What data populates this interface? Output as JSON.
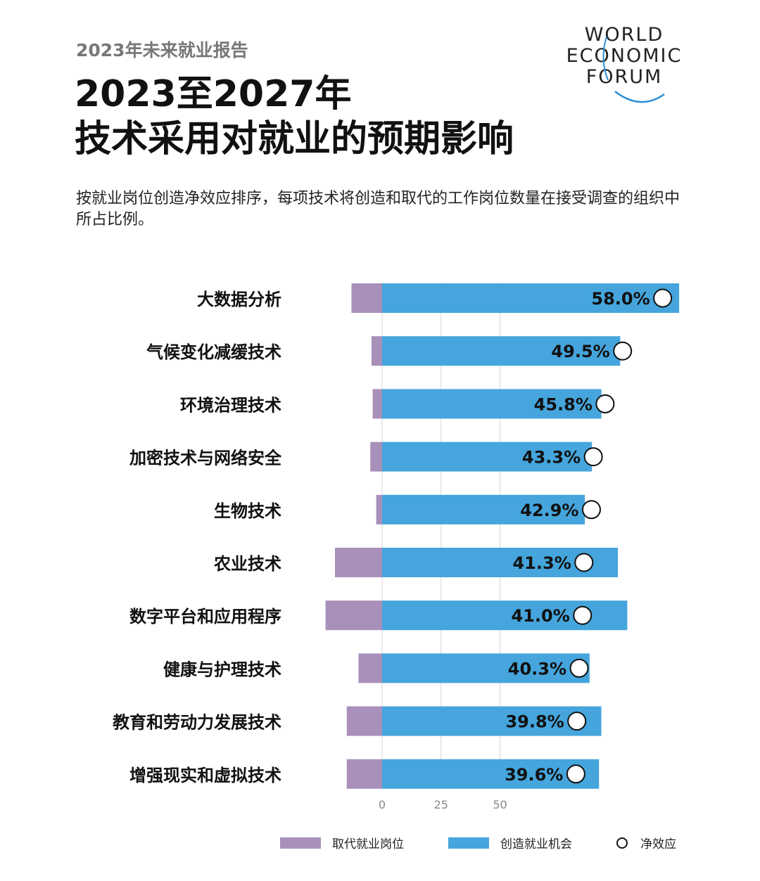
{
  "header": {
    "report_label": "2023年未来就业报告",
    "title_line1": "2023至2027年",
    "title_line2": "技术采用对就业的预期影响",
    "subtitle": "按就业岗位创造净效应排序，每项技术将创造和取代的工作岗位数量在接受调查的组织中所占比例。"
  },
  "logo": {
    "line1": "WORLD",
    "line2": "ECONOMIC",
    "line3": "FORUM"
  },
  "colors": {
    "displaced": "#a890bb",
    "created": "#45a5dc",
    "grid": "#d6d6d6",
    "net_circle_stroke": "#111111"
  },
  "chart_data": {
    "type": "bar",
    "orientation": "horizontal",
    "categories": [
      "大数据分析",
      "气候变化减缓技术",
      "环境治理技术",
      "加密技术与网络安全",
      "生物技术",
      "农业技术",
      "数字平台和应用程序",
      "健康与护理技术",
      "教育和劳动力发展技术",
      "增强现实和虚拟技术"
    ],
    "series": [
      {
        "name": "取代就业岗位",
        "values": [
          -13,
          -4.5,
          -4,
          -5,
          -2.5,
          -20,
          -24,
          -10,
          -15,
          -15
        ]
      },
      {
        "name": "创造就业机会",
        "values": [
          126,
          101,
          93,
          89,
          86,
          100,
          104,
          88,
          93,
          92
        ]
      }
    ],
    "net_effect": {
      "name": "净效应",
      "values": [
        58.0,
        49.5,
        45.8,
        43.3,
        42.9,
        41.3,
        41.0,
        40.3,
        39.8,
        39.6
      ],
      "labels": [
        "58.0%",
        "49.5%",
        "45.8%",
        "43.3%",
        "42.9%",
        "41.3%",
        "41.0%",
        "40.3%",
        "39.8%",
        "39.6%"
      ]
    },
    "x_ticks": [
      0,
      25,
      50
    ],
    "x_tick_labels": [
      "0",
      "25",
      "50"
    ],
    "grid": true,
    "legend": {
      "position": "bottom",
      "entries": [
        "取代就业岗位",
        "创造就业机会",
        "净效应"
      ]
    }
  }
}
